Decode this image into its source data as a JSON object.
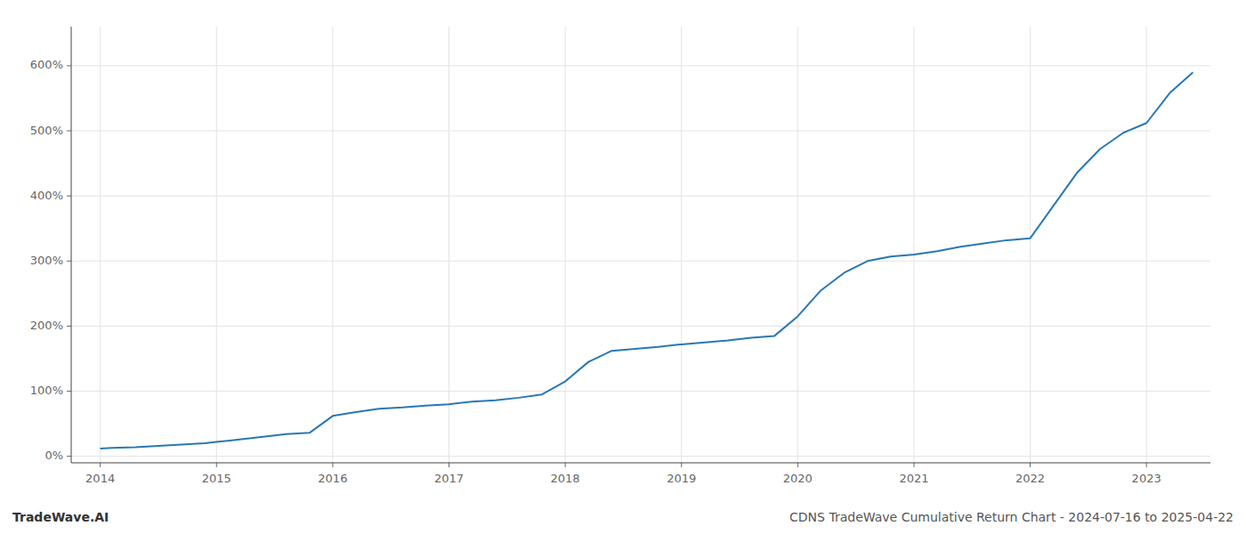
{
  "chart_data": {
    "type": "line",
    "title": "CDNS TradeWave Cumulative Return Chart - 2024-07-16 to 2025-04-22",
    "annotations": [
      "TradeWave.AI"
    ],
    "color": "#2878b5",
    "grid": true,
    "x": [
      2014.0,
      2014.1,
      2014.3,
      2014.5,
      2014.7,
      2014.9,
      2015.0,
      2015.2,
      2015.4,
      2015.6,
      2015.8,
      2016.0,
      2016.2,
      2016.4,
      2016.6,
      2016.8,
      2017.0,
      2017.2,
      2017.4,
      2017.6,
      2017.8,
      2018.0,
      2018.2,
      2018.4,
      2018.6,
      2018.8,
      2019.0,
      2019.2,
      2019.4,
      2019.6,
      2019.8,
      2020.0,
      2020.2,
      2020.4,
      2020.6,
      2020.8,
      2021.0,
      2021.2,
      2021.4,
      2021.6,
      2021.8,
      2022.0,
      2022.2,
      2022.4,
      2022.6,
      2022.8,
      2023.0,
      2023.2,
      2023.4
    ],
    "values": [
      12,
      13,
      14,
      16,
      18,
      20,
      22,
      26,
      30,
      34,
      36,
      62,
      68,
      73,
      75,
      78,
      80,
      84,
      86,
      90,
      95,
      115,
      145,
      162,
      165,
      168,
      172,
      175,
      178,
      182,
      185,
      215,
      255,
      282,
      300,
      307,
      310,
      315,
      322,
      327,
      332,
      335,
      385,
      435,
      472,
      497,
      512,
      558,
      590
    ],
    "xlim": [
      2013.75,
      2023.55
    ],
    "ylim": [
      -10,
      660
    ],
    "xticks": [
      2014,
      2015,
      2016,
      2017,
      2018,
      2019,
      2020,
      2021,
      2022,
      2023
    ],
    "yticks": [
      {
        "value": 0,
        "label": "0%"
      },
      {
        "value": 100,
        "label": "100%"
      },
      {
        "value": 200,
        "label": "200%"
      },
      {
        "value": 300,
        "label": "300%"
      },
      {
        "value": 400,
        "label": "400%"
      },
      {
        "value": 500,
        "label": "500%"
      },
      {
        "value": 600,
        "label": "600%"
      }
    ]
  }
}
